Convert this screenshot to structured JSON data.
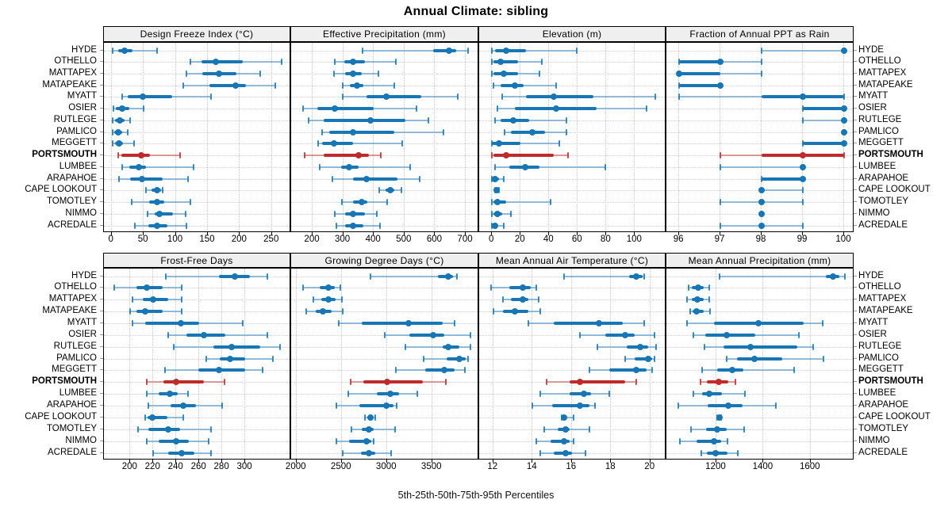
{
  "title": "Annual Climate: sibling",
  "caption": "5th-25th-50th-75th-95th Percentiles",
  "colors": {
    "series": "#1876b4",
    "highlight": "#bf2b2b",
    "strip_bg": "#efefef",
    "grid": "#c6c6c6",
    "border": "#000000"
  },
  "highlighted_series": "PORTSMOUTH",
  "chart_data": {
    "type": "dotplot-segments",
    "title": "Annual Climate: sibling",
    "xlabel": "5th-25th-50th-75th-95th Percentiles",
    "percentiles": [
      5,
      25,
      50,
      75,
      95
    ],
    "legend_position": "none",
    "grid": "dotted",
    "layout": "2 rows x 4 columns, shared series rows, labels on both sides",
    "rows": [
      "HYDE",
      "OTHELLO",
      "MATTAPEX",
      "MATAPEAKE",
      "MYATT",
      "OSIER",
      "RUTLEGE",
      "PAMLICO",
      "MEGGETT",
      "PORTSMOUTH",
      "LUMBEE",
      "ARAPAHOE",
      "CAPE LOOKOUT",
      "TOMOTLEY",
      "NIMMO",
      "ACREDALE"
    ],
    "highlighted_row": "PORTSMOUTH",
    "panels": [
      {
        "title": "Design Freeze Index (°C)",
        "grid_row": 0,
        "ticks": [
          0,
          50,
          100,
          150,
          200,
          250
        ],
        "xlim": [
          -12,
          280
        ],
        "values": [
          [
            2,
            10,
            20,
            32,
            71
          ],
          [
            123,
            140,
            163,
            205,
            265
          ],
          [
            117,
            142,
            168,
            195,
            232
          ],
          [
            112,
            152,
            193,
            210,
            255
          ],
          [
            16,
            25,
            49,
            95,
            155
          ],
          [
            3,
            7,
            17,
            27,
            50
          ],
          [
            2,
            5,
            13,
            20,
            29
          ],
          [
            1,
            4,
            10,
            16,
            25
          ],
          [
            2,
            5,
            12,
            18,
            35
          ],
          [
            10,
            15,
            46,
            60,
            107
          ],
          [
            17,
            27,
            42,
            54,
            128
          ],
          [
            11,
            29,
            47,
            79,
            119
          ],
          [
            53,
            62,
            71,
            77,
            80
          ],
          [
            31,
            59,
            71,
            82,
            123
          ],
          [
            56,
            67,
            75,
            96,
            115
          ],
          [
            36,
            57,
            71,
            87,
            117
          ]
        ]
      },
      {
        "title": "Effective Precipitation (mm)",
        "grid_row": 0,
        "ticks": [
          200,
          300,
          400,
          500,
          600,
          700
        ],
        "xlim": [
          130,
          744
        ],
        "values": [
          [
            364,
            593,
            645,
            668,
            709
          ],
          [
            272,
            304,
            331,
            370,
            472
          ],
          [
            271,
            305,
            331,
            361,
            416
          ],
          [
            298,
            322,
            344,
            366,
            467
          ],
          [
            298,
            375,
            442,
            556,
            674
          ],
          [
            169,
            215,
            273,
            400,
            540
          ],
          [
            186,
            236,
            388,
            504,
            578
          ],
          [
            230,
            254,
            331,
            468,
            627
          ],
          [
            217,
            232,
            269,
            331,
            493
          ],
          [
            173,
            236,
            349,
            383,
            424
          ],
          [
            223,
            292,
            318,
            351,
            519
          ],
          [
            265,
            331,
            376,
            478,
            550
          ],
          [
            418,
            437,
            455,
            468,
            491
          ],
          [
            295,
            331,
            360,
            379,
            444
          ],
          [
            273,
            305,
            333,
            370,
            409
          ],
          [
            278,
            305,
            333,
            365,
            420
          ]
        ]
      },
      {
        "title": "Elevation (m)",
        "grid_row": 0,
        "ticks": [
          0,
          20,
          40,
          60,
          80,
          100
        ],
        "xlim": [
          -9,
          122
        ],
        "values": [
          [
            0,
            2,
            10,
            24,
            59
          ],
          [
            0,
            1,
            6,
            18,
            35
          ],
          [
            0,
            1,
            8,
            18,
            33
          ],
          [
            1,
            6,
            16,
            22,
            45
          ],
          [
            7,
            24,
            43,
            71,
            114
          ],
          [
            4,
            16,
            45,
            73,
            108
          ],
          [
            2,
            6,
            15,
            26,
            52
          ],
          [
            9,
            13,
            28,
            37,
            52
          ],
          [
            0,
            0,
            5,
            20,
            47
          ],
          [
            0,
            1,
            10,
            43,
            53
          ],
          [
            2,
            12,
            23,
            33,
            79
          ],
          [
            0,
            0,
            2,
            5,
            8
          ],
          [
            2,
            2,
            3,
            4,
            5
          ],
          [
            0,
            1,
            4,
            10,
            41
          ],
          [
            0,
            1,
            4,
            7,
            13
          ],
          [
            0,
            1,
            2,
            4,
            8
          ]
        ]
      },
      {
        "title": "Fraction of Annual PPT as Rain",
        "grid_row": 0,
        "ticks": [
          96,
          97,
          98,
          99,
          100
        ],
        "xlim": [
          95.69,
          100.25
        ],
        "values": [
          [
            98,
            100,
            100,
            100,
            100
          ],
          [
            96,
            96,
            97,
            97,
            98
          ],
          [
            96,
            96,
            96,
            97,
            98
          ],
          [
            96,
            96,
            97,
            97,
            97
          ],
          [
            96,
            98,
            99,
            100,
            100
          ],
          [
            99,
            99,
            100,
            100,
            100
          ],
          [
            99,
            100,
            100,
            100,
            100
          ],
          [
            100,
            100,
            100,
            100,
            100
          ],
          [
            99,
            99,
            100,
            100,
            100
          ],
          [
            97,
            98,
            99,
            100,
            100
          ],
          [
            97,
            99,
            99,
            99,
            99
          ],
          [
            98,
            98,
            99,
            99,
            99
          ],
          [
            98,
            98,
            98,
            98,
            99
          ],
          [
            97,
            98,
            98,
            98,
            99
          ],
          [
            98,
            98,
            98,
            98,
            98
          ],
          [
            97,
            98,
            98,
            98,
            99
          ]
        ]
      },
      {
        "title": "Frost-Free Days",
        "grid_row": 1,
        "ticks": [
          200,
          220,
          240,
          260,
          280,
          300
        ],
        "xlim": [
          177,
          340
        ],
        "values": [
          [
            231,
            277,
            291,
            304,
            319
          ],
          [
            186,
            205,
            214,
            228,
            245
          ],
          [
            202,
            211,
            220,
            233,
            245
          ],
          [
            200,
            205,
            213,
            228,
            245
          ],
          [
            202,
            213,
            244,
            260,
            298
          ],
          [
            233,
            249,
            264,
            283,
            319
          ],
          [
            238,
            272,
            288,
            313,
            330
          ],
          [
            266,
            278,
            287,
            300,
            324
          ],
          [
            230,
            259,
            277,
            300,
            315
          ],
          [
            214,
            229,
            240,
            264,
            282
          ],
          [
            214,
            225,
            234,
            241,
            250
          ],
          [
            216,
            235,
            246,
            257,
            280
          ],
          [
            213,
            215,
            219,
            232,
            246
          ],
          [
            207,
            216,
            233,
            243,
            270
          ],
          [
            214,
            225,
            240,
            251,
            268
          ],
          [
            220,
            233,
            245,
            256,
            270
          ]
        ]
      },
      {
        "title": "Growing Degree Days (°C)",
        "grid_row": 1,
        "ticks": [
          2000,
          2500,
          3000,
          3500
        ],
        "xlim": [
          1941,
          4020
        ],
        "values": [
          [
            2820,
            3560,
            3680,
            3730,
            3770
          ],
          [
            2070,
            2255,
            2350,
            2420,
            2485
          ],
          [
            2185,
            2270,
            2350,
            2430,
            2505
          ],
          [
            2105,
            2215,
            2290,
            2390,
            2515
          ],
          [
            2470,
            2725,
            3235,
            3615,
            3750
          ],
          [
            2980,
            3250,
            3515,
            3630,
            3920
          ],
          [
            3200,
            3615,
            3680,
            3805,
            3920
          ],
          [
            3405,
            3660,
            3800,
            3870,
            3895
          ],
          [
            3100,
            3425,
            3635,
            3745,
            3865
          ],
          [
            2600,
            2735,
            3005,
            3400,
            3650
          ],
          [
            2575,
            2885,
            3040,
            3135,
            3340
          ],
          [
            2440,
            2695,
            2990,
            3075,
            3105
          ],
          [
            2755,
            2790,
            2820,
            2845,
            2870
          ],
          [
            2610,
            2725,
            2805,
            2855,
            3090
          ],
          [
            2445,
            2580,
            2775,
            2825,
            2850
          ],
          [
            2510,
            2710,
            2805,
            2870,
            3050
          ]
        ]
      },
      {
        "title": "Mean Annual Air Temperature (°C)",
        "grid_row": 1,
        "ticks": [
          12,
          14,
          16,
          18,
          20
        ],
        "xlim": [
          11.28,
          20.82
        ],
        "values": [
          [
            15.6,
            18.9,
            19.3,
            19.6,
            19.7
          ],
          [
            11.9,
            12.8,
            13.5,
            13.9,
            14.2
          ],
          [
            12.5,
            12.9,
            13.5,
            13.8,
            14.3
          ],
          [
            12.0,
            12.5,
            13.1,
            13.8,
            14.4
          ],
          [
            13.8,
            15.1,
            17.4,
            18.6,
            19.7
          ],
          [
            16.4,
            17.7,
            18.7,
            19.2,
            20.2
          ],
          [
            17.3,
            18.8,
            19.5,
            19.9,
            20.3
          ],
          [
            18.7,
            19.2,
            19.9,
            20.1,
            20.2
          ],
          [
            16.9,
            17.9,
            19.3,
            19.8,
            20.1
          ],
          [
            14.7,
            15.9,
            16.4,
            18.7,
            19.3
          ],
          [
            14.4,
            15.9,
            16.6,
            17.0,
            17.9
          ],
          [
            14.0,
            15.0,
            16.4,
            16.9,
            17.2
          ],
          [
            15.5,
            15.5,
            15.6,
            15.7,
            16.1
          ],
          [
            14.6,
            15.3,
            15.7,
            15.9,
            16.9
          ],
          [
            14.2,
            14.9,
            15.6,
            15.9,
            16.1
          ],
          [
            14.4,
            15.1,
            15.7,
            16.0,
            16.7
          ]
        ]
      },
      {
        "title": "Mean Annual Precipitation (mm)",
        "grid_row": 1,
        "ticks": [
          1200,
          1400,
          1600
        ],
        "xlim": [
          988,
          1786
        ],
        "values": [
          [
            1212,
            1664,
            1695,
            1722,
            1745
          ],
          [
            1082,
            1097,
            1121,
            1147,
            1170
          ],
          [
            1074,
            1097,
            1119,
            1145,
            1170
          ],
          [
            1088,
            1100,
            1117,
            1145,
            1172
          ],
          [
            1076,
            1190,
            1378,
            1570,
            1650
          ],
          [
            1104,
            1153,
            1243,
            1366,
            1550
          ],
          [
            1149,
            1231,
            1344,
            1543,
            1610
          ],
          [
            1245,
            1288,
            1363,
            1481,
            1653
          ],
          [
            1138,
            1203,
            1267,
            1316,
            1531
          ],
          [
            1133,
            1161,
            1211,
            1251,
            1280
          ],
          [
            1104,
            1138,
            1170,
            1224,
            1321
          ],
          [
            1040,
            1164,
            1252,
            1310,
            1454
          ],
          [
            1203,
            1208,
            1212,
            1216,
            1220
          ],
          [
            1091,
            1158,
            1203,
            1243,
            1319
          ],
          [
            1044,
            1117,
            1190,
            1220,
            1248
          ],
          [
            1136,
            1161,
            1196,
            1248,
            1290
          ]
        ]
      }
    ]
  }
}
